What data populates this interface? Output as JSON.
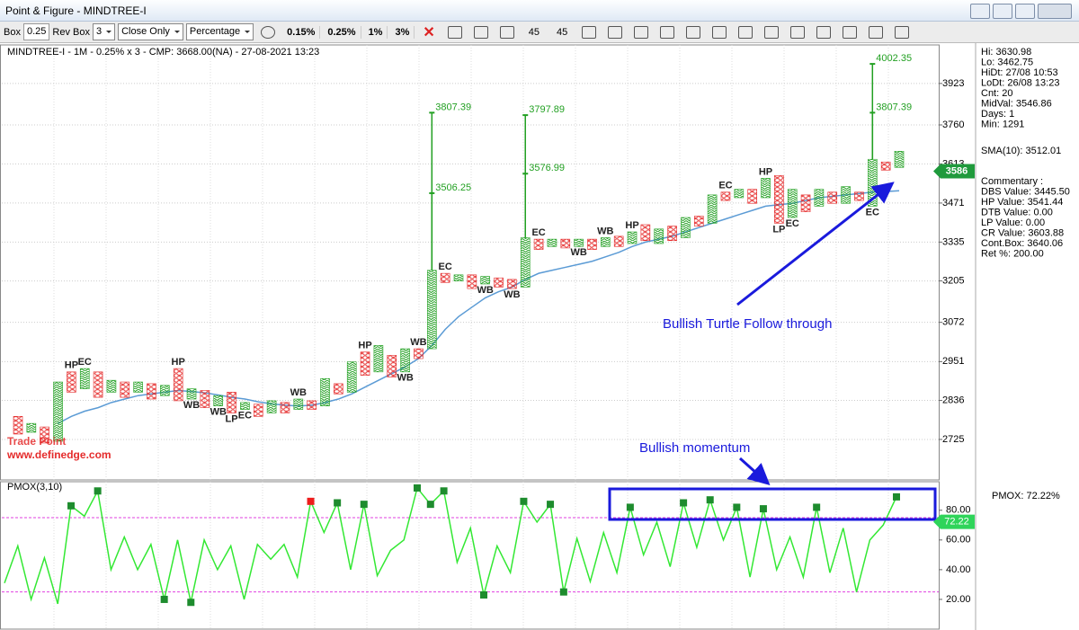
{
  "window": {
    "title": "Point & Figure - MINDTREE-I"
  },
  "toolbar": {
    "box_label": "Box",
    "box": "0.25",
    "rev_label": "Rev Box",
    "rev": "3",
    "method": "Close Only",
    "scale": "Percentage",
    "presets": [
      "0.15%",
      "0.25%",
      "1%",
      "3%"
    ],
    "angles": [
      "45",
      "45"
    ]
  },
  "chart_data": [
    {
      "type": "pnf",
      "title": "MINDTREE-I - 1M - 0.25% x 3 - CMP: 3668.00(NA) - 27-08-2021 13:23",
      "log": true,
      "grid": true,
      "ylim": [
        2624,
        4036
      ],
      "yticks": [
        2725,
        2836,
        2951,
        3072,
        3205,
        3335,
        3471,
        3613,
        3760,
        3923
      ],
      "x_color": "#22a022",
      "o_color": "#e52b2b",
      "sma_color": "#5b9bd5",
      "price_tag": 3586,
      "columns": [
        {
          "kind": "o",
          "low": 2740,
          "high": 2790
        },
        {
          "kind": "x",
          "low": 2745,
          "high": 2770
        },
        {
          "kind": "o",
          "low": 2715,
          "high": 2760
        },
        {
          "kind": "x",
          "low": 2720,
          "high": 2890
        },
        {
          "kind": "o",
          "low": 2860,
          "high": 2920,
          "tags": [
            {
              "text": "HP",
              "pos": "above"
            }
          ]
        },
        {
          "kind": "x",
          "low": 2870,
          "high": 2930,
          "tags": [
            {
              "text": "EC",
              "pos": "above"
            }
          ]
        },
        {
          "kind": "o",
          "low": 2845,
          "high": 2920
        },
        {
          "kind": "x",
          "low": 2860,
          "high": 2895
        },
        {
          "kind": "o",
          "low": 2845,
          "high": 2890
        },
        {
          "kind": "x",
          "low": 2860,
          "high": 2890
        },
        {
          "kind": "o",
          "low": 2840,
          "high": 2885
        },
        {
          "kind": "x",
          "low": 2850,
          "high": 2880
        },
        {
          "kind": "o",
          "low": 2835,
          "high": 2930,
          "tags": [
            {
              "text": "HP",
              "pos": "above"
            }
          ]
        },
        {
          "kind": "x",
          "low": 2840,
          "high": 2870,
          "tags": [
            {
              "text": "WB",
              "pos": "below"
            }
          ]
        },
        {
          "kind": "o",
          "low": 2815,
          "high": 2865
        },
        {
          "kind": "x",
          "low": 2820,
          "high": 2850,
          "tags": [
            {
              "text": "WB",
              "pos": "below"
            }
          ]
        },
        {
          "kind": "o",
          "low": 2800,
          "high": 2860,
          "tags": [
            {
              "text": "LP",
              "pos": "below"
            }
          ]
        },
        {
          "kind": "x",
          "low": 2810,
          "high": 2830,
          "tags": [
            {
              "text": "EC",
              "pos": "below"
            }
          ]
        },
        {
          "kind": "o",
          "low": 2790,
          "high": 2825
        },
        {
          "kind": "x",
          "low": 2800,
          "high": 2835
        },
        {
          "kind": "o",
          "low": 2800,
          "high": 2830
        },
        {
          "kind": "x",
          "low": 2810,
          "high": 2840,
          "tags": [
            {
              "text": "WB",
              "pos": "above"
            }
          ]
        },
        {
          "kind": "o",
          "low": 2810,
          "high": 2835
        },
        {
          "kind": "x",
          "low": 2820,
          "high": 2900
        },
        {
          "kind": "o",
          "low": 2855,
          "high": 2885
        },
        {
          "kind": "x",
          "low": 2860,
          "high": 2950
        },
        {
          "kind": "o",
          "low": 2910,
          "high": 2980,
          "tags": [
            {
              "text": "HP",
              "pos": "above"
            }
          ]
        },
        {
          "kind": "x",
          "low": 2920,
          "high": 3000
        },
        {
          "kind": "o",
          "low": 2905,
          "high": 2970
        },
        {
          "kind": "x",
          "low": 2920,
          "high": 2990,
          "tags": [
            {
              "text": "WB",
              "pos": "below"
            }
          ]
        },
        {
          "kind": "o",
          "low": 2960,
          "high": 2990,
          "tags": [
            {
              "text": "WB",
              "pos": "above"
            }
          ]
        },
        {
          "kind": "x",
          "low": 2990,
          "high": 3240,
          "targets": [
            3506.25,
            3807.39
          ]
        },
        {
          "kind": "o",
          "low": 3200,
          "high": 3230,
          "tags": [
            {
              "text": "EC",
              "pos": "above"
            }
          ]
        },
        {
          "kind": "x",
          "low": 3205,
          "high": 3225
        },
        {
          "kind": "o",
          "low": 3180,
          "high": 3225
        },
        {
          "kind": "x",
          "low": 3195,
          "high": 3220,
          "tags": [
            {
              "text": "WB",
              "pos": "below"
            }
          ]
        },
        {
          "kind": "o",
          "low": 3185,
          "high": 3215
        },
        {
          "kind": "o",
          "low": 3180,
          "high": 3210,
          "tags": [
            {
              "text": "WB",
              "pos": "below"
            }
          ]
        },
        {
          "kind": "x",
          "low": 3185,
          "high": 3350,
          "targets": [
            3576.99,
            3797.89
          ]
        },
        {
          "kind": "o",
          "low": 3310,
          "high": 3345,
          "tags": [
            {
              "text": "EC",
              "pos": "above"
            }
          ]
        },
        {
          "kind": "x",
          "low": 3320,
          "high": 3345
        },
        {
          "kind": "o",
          "low": 3315,
          "high": 3345
        },
        {
          "kind": "x",
          "low": 3320,
          "high": 3345,
          "tags": [
            {
              "text": "WB",
              "pos": "below"
            }
          ]
        },
        {
          "kind": "o",
          "low": 3310,
          "high": 3345
        },
        {
          "kind": "x",
          "low": 3320,
          "high": 3350,
          "tags": [
            {
              "text": "WB",
              "pos": "above"
            }
          ]
        },
        {
          "kind": "o",
          "low": 3320,
          "high": 3355
        },
        {
          "kind": "x",
          "low": 3330,
          "high": 3370,
          "tags": [
            {
              "text": "HP",
              "pos": "above"
            }
          ]
        },
        {
          "kind": "o",
          "low": 3340,
          "high": 3395
        },
        {
          "kind": "x",
          "low": 3330,
          "high": 3380
        },
        {
          "kind": "o",
          "low": 3340,
          "high": 3390
        },
        {
          "kind": "x",
          "low": 3350,
          "high": 3420
        },
        {
          "kind": "o",
          "low": 3390,
          "high": 3425
        },
        {
          "kind": "x",
          "low": 3400,
          "high": 3500
        },
        {
          "kind": "o",
          "low": 3480,
          "high": 3510,
          "tags": [
            {
              "text": "EC",
              "pos": "above"
            }
          ]
        },
        {
          "kind": "x",
          "low": 3490,
          "high": 3520
        },
        {
          "kind": "o",
          "low": 3470,
          "high": 3520
        },
        {
          "kind": "x",
          "low": 3490,
          "high": 3560,
          "tags": [
            {
              "text": "HP",
              "pos": "above"
            }
          ]
        },
        {
          "kind": "o",
          "low": 3400,
          "high": 3570,
          "tags": [
            {
              "text": "LP",
              "pos": "below"
            }
          ]
        },
        {
          "kind": "x",
          "low": 3420,
          "high": 3520,
          "tags": [
            {
              "text": "EC",
              "pos": "below"
            }
          ]
        },
        {
          "kind": "o",
          "low": 3440,
          "high": 3500
        },
        {
          "kind": "x",
          "low": 3460,
          "high": 3520
        },
        {
          "kind": "o",
          "low": 3470,
          "high": 3510
        },
        {
          "kind": "x",
          "low": 3470,
          "high": 3530
        },
        {
          "kind": "o",
          "low": 3480,
          "high": 3510
        },
        {
          "kind": "x",
          "low": 3460,
          "high": 3630,
          "targets": [
            3807.39,
            4002.35
          ],
          "tags": [
            {
              "text": "EC",
              "pos": "below"
            }
          ]
        },
        {
          "kind": "o",
          "low": 3590,
          "high": 3620
        },
        {
          "kind": "x",
          "low": 3600,
          "high": 3660
        }
      ],
      "sma": [
        null,
        null,
        null,
        2770,
        2790,
        2805,
        2815,
        2830,
        2840,
        2850,
        2855,
        2860,
        2865,
        2862,
        2858,
        2852,
        2845,
        2840,
        2832,
        2826,
        2822,
        2820,
        2822,
        2830,
        2840,
        2855,
        2875,
        2895,
        2915,
        2935,
        2960,
        3000,
        3050,
        3090,
        3120,
        3150,
        3170,
        3185,
        3210,
        3230,
        3240,
        3250,
        3260,
        3270,
        3285,
        3300,
        3320,
        3335,
        3345,
        3355,
        3370,
        3385,
        3400,
        3415,
        3430,
        3445,
        3460,
        3465,
        3470,
        3480,
        3490,
        3495,
        3500,
        3505,
        3510,
        3512,
        3515
      ],
      "annotations": [
        "Bullish Turtle Follow through",
        "Bullish momentum"
      ],
      "watermark": [
        "Trade Point",
        "www.definedge.com"
      ],
      "info": [
        "Hi: 3630.98",
        "Lo: 3462.75",
        "HiDt: 27/08 10:53",
        "LoDt: 26/08 13:23",
        "Cnt: 20",
        "MidVal: 3546.86",
        "Days: 1",
        "Min: 1291"
      ],
      "sma_readout": "SMA(10): 3512.01",
      "commentary": [
        "Commentary :",
        "DBS Value:  3445.50",
        "HP Value: 3541.44",
        "DTB Value: 0.00",
        "LP Value: 0.00",
        "CR Value: 3603.88",
        "Cont.Box: 3640.06",
        "Ret %: 200.00"
      ]
    },
    {
      "type": "line",
      "title": "PMOX(3,10)",
      "readout": "PMOX: 72.22%",
      "ylim": [
        0,
        98
      ],
      "yticks": [
        {
          "value": 20,
          "label": "20.00"
        },
        {
          "value": 40,
          "label": "40.00"
        },
        {
          "value": 60,
          "label": "60.00"
        },
        {
          "value": 80,
          "label": "80.00"
        }
      ],
      "bands": [
        25,
        75
      ],
      "band_color": "#e040e0",
      "value_tag": 72.22,
      "series": [
        {
          "color": "#33e833",
          "values": [
            31,
            56,
            20,
            48,
            17,
            83,
            76,
            93,
            40,
            62,
            40,
            57,
            20,
            60,
            18,
            60,
            40,
            56,
            20,
            57,
            47,
            57,
            35,
            86,
            65,
            85,
            40,
            84,
            36,
            53,
            60,
            95,
            84,
            93,
            45,
            68,
            23,
            56,
            38,
            86,
            72,
            84,
            25,
            61,
            32,
            65,
            38,
            82,
            50,
            72,
            42,
            85,
            55,
            87,
            60,
            82,
            35,
            81,
            40,
            62,
            35,
            82,
            38,
            68,
            25,
            60,
            70,
            89
          ]
        },
        {
          "color": "#1e8c2e",
          "values": [
            null,
            null,
            null,
            null,
            null,
            83,
            null,
            93,
            null,
            null,
            null,
            null,
            20,
            null,
            18,
            null,
            null,
            null,
            null,
            null,
            null,
            null,
            null,
            null,
            null,
            85,
            null,
            84,
            null,
            null,
            null,
            95,
            84,
            93,
            null,
            null,
            23,
            null,
            null,
            86,
            null,
            84,
            25,
            null,
            null,
            null,
            null,
            82,
            null,
            null,
            null,
            85,
            null,
            87,
            null,
            82,
            null,
            81,
            null,
            null,
            null,
            82,
            null,
            null,
            null,
            null,
            null,
            89
          ]
        },
        {
          "color": "#ee1c1c",
          "values": [
            null,
            null,
            null,
            null,
            null,
            null,
            null,
            null,
            null,
            null,
            null,
            null,
            null,
            null,
            null,
            null,
            null,
            null,
            null,
            null,
            null,
            null,
            null,
            86,
            null,
            null,
            null,
            null,
            null,
            null,
            null,
            null,
            null,
            null,
            null,
            null,
            null,
            null,
            null,
            null,
            null,
            null,
            null,
            null,
            null,
            null,
            null,
            null,
            null,
            null,
            null,
            null,
            null,
            null,
            null,
            null,
            null,
            null,
            null,
            null,
            null,
            null,
            null,
            null,
            null,
            null,
            null,
            null
          ]
        }
      ]
    }
  ]
}
